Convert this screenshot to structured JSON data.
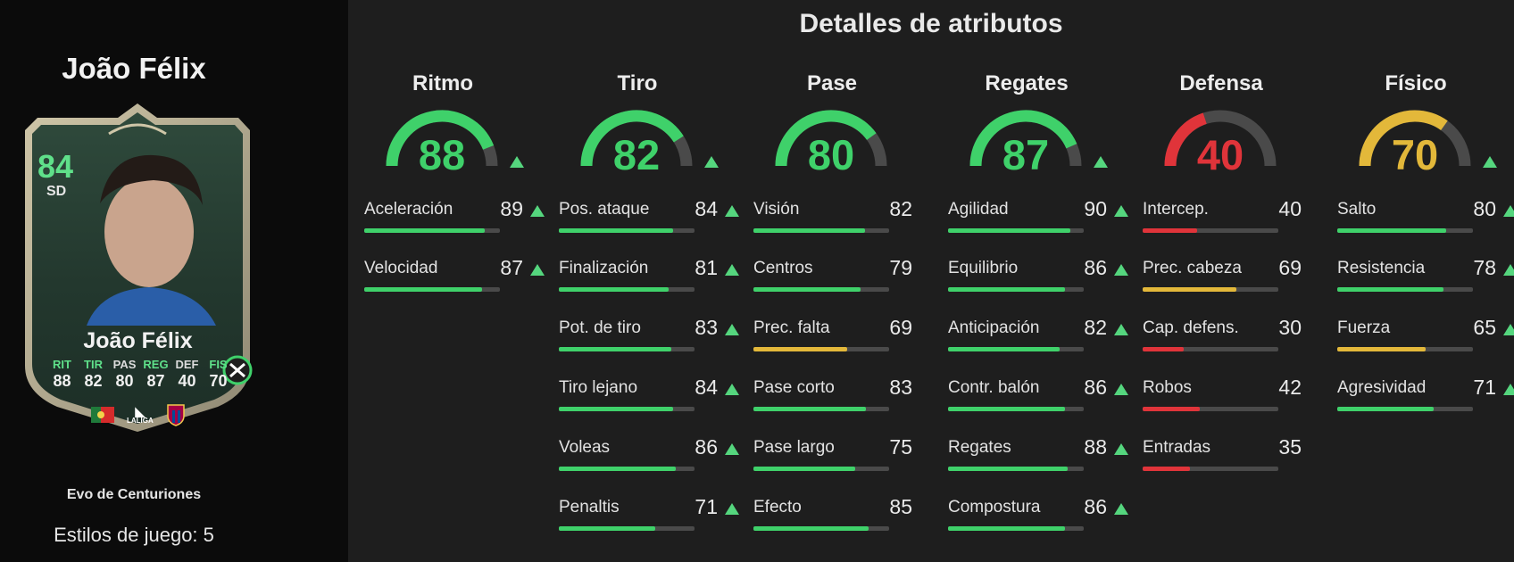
{
  "player": {
    "name": "João Félix",
    "card_name": "João Félix",
    "rating": "84",
    "position": "SD",
    "evo_label": "Evo de Centuriones",
    "playstyles": "Estilos de juego: 5",
    "card_stats": [
      {
        "label": "RIT",
        "value": "88",
        "up": true
      },
      {
        "label": "TIR",
        "value": "82",
        "up": true
      },
      {
        "label": "PAS",
        "value": "80",
        "up": false
      },
      {
        "label": "REG",
        "value": "87",
        "up": true
      },
      {
        "label": "DEF",
        "value": "40",
        "up": false
      },
      {
        "label": "FIS",
        "value": "70",
        "up": true
      }
    ],
    "league_badge": "LALIGA"
  },
  "colors": {
    "high": "#3fd16a",
    "mid": "#e3b83a",
    "low": "#e0343a",
    "arrow": "#55d67e",
    "track": "#4a4a4a"
  },
  "details_title": "Detalles de atributos",
  "categories": [
    {
      "title": "Ritmo",
      "value": 88,
      "up": true,
      "color": "high",
      "stats": [
        {
          "name": "Aceleración",
          "value": 89,
          "up": true,
          "color": "high"
        },
        {
          "name": "Velocidad",
          "value": 87,
          "up": true,
          "color": "high"
        }
      ]
    },
    {
      "title": "Tiro",
      "value": 82,
      "up": true,
      "color": "high",
      "stats": [
        {
          "name": "Pos. ataque",
          "value": 84,
          "up": true,
          "color": "high"
        },
        {
          "name": "Finalización",
          "value": 81,
          "up": true,
          "color": "high"
        },
        {
          "name": "Pot. de tiro",
          "value": 83,
          "up": true,
          "color": "high"
        },
        {
          "name": "Tiro lejano",
          "value": 84,
          "up": true,
          "color": "high"
        },
        {
          "name": "Voleas",
          "value": 86,
          "up": true,
          "color": "high"
        },
        {
          "name": "Penaltis",
          "value": 71,
          "up": true,
          "color": "high"
        }
      ]
    },
    {
      "title": "Pase",
      "value": 80,
      "up": false,
      "color": "high",
      "stats": [
        {
          "name": "Visión",
          "value": 82,
          "up": false,
          "color": "high"
        },
        {
          "name": "Centros",
          "value": 79,
          "up": false,
          "color": "high"
        },
        {
          "name": "Prec. falta",
          "value": 69,
          "up": false,
          "color": "mid"
        },
        {
          "name": "Pase corto",
          "value": 83,
          "up": false,
          "color": "high"
        },
        {
          "name": "Pase largo",
          "value": 75,
          "up": false,
          "color": "high"
        },
        {
          "name": "Efecto",
          "value": 85,
          "up": false,
          "color": "high"
        }
      ]
    },
    {
      "title": "Regates",
      "value": 87,
      "up": true,
      "color": "high",
      "stats": [
        {
          "name": "Agilidad",
          "value": 90,
          "up": true,
          "color": "high"
        },
        {
          "name": "Equilibrio",
          "value": 86,
          "up": true,
          "color": "high"
        },
        {
          "name": "Anticipación",
          "value": 82,
          "up": true,
          "color": "high"
        },
        {
          "name": "Contr. balón",
          "value": 86,
          "up": true,
          "color": "high"
        },
        {
          "name": "Regates",
          "value": 88,
          "up": true,
          "color": "high"
        },
        {
          "name": "Compostura",
          "value": 86,
          "up": true,
          "color": "high"
        }
      ]
    },
    {
      "title": "Defensa",
      "value": 40,
      "up": false,
      "color": "low",
      "stats": [
        {
          "name": "Intercep.",
          "value": 40,
          "up": false,
          "color": "low"
        },
        {
          "name": "Prec. cabeza",
          "value": 69,
          "up": false,
          "color": "mid"
        },
        {
          "name": "Cap. defens.",
          "value": 30,
          "up": false,
          "color": "low"
        },
        {
          "name": "Robos",
          "value": 42,
          "up": false,
          "color": "low"
        },
        {
          "name": "Entradas",
          "value": 35,
          "up": false,
          "color": "low"
        }
      ]
    },
    {
      "title": "Físico",
      "value": 70,
      "up": true,
      "color": "mid",
      "stats": [
        {
          "name": "Salto",
          "value": 80,
          "up": true,
          "color": "high"
        },
        {
          "name": "Resistencia",
          "value": 78,
          "up": true,
          "color": "high"
        },
        {
          "name": "Fuerza",
          "value": 65,
          "up": true,
          "color": "mid"
        },
        {
          "name": "Agresividad",
          "value": 71,
          "up": true,
          "color": "high"
        }
      ]
    }
  ]
}
